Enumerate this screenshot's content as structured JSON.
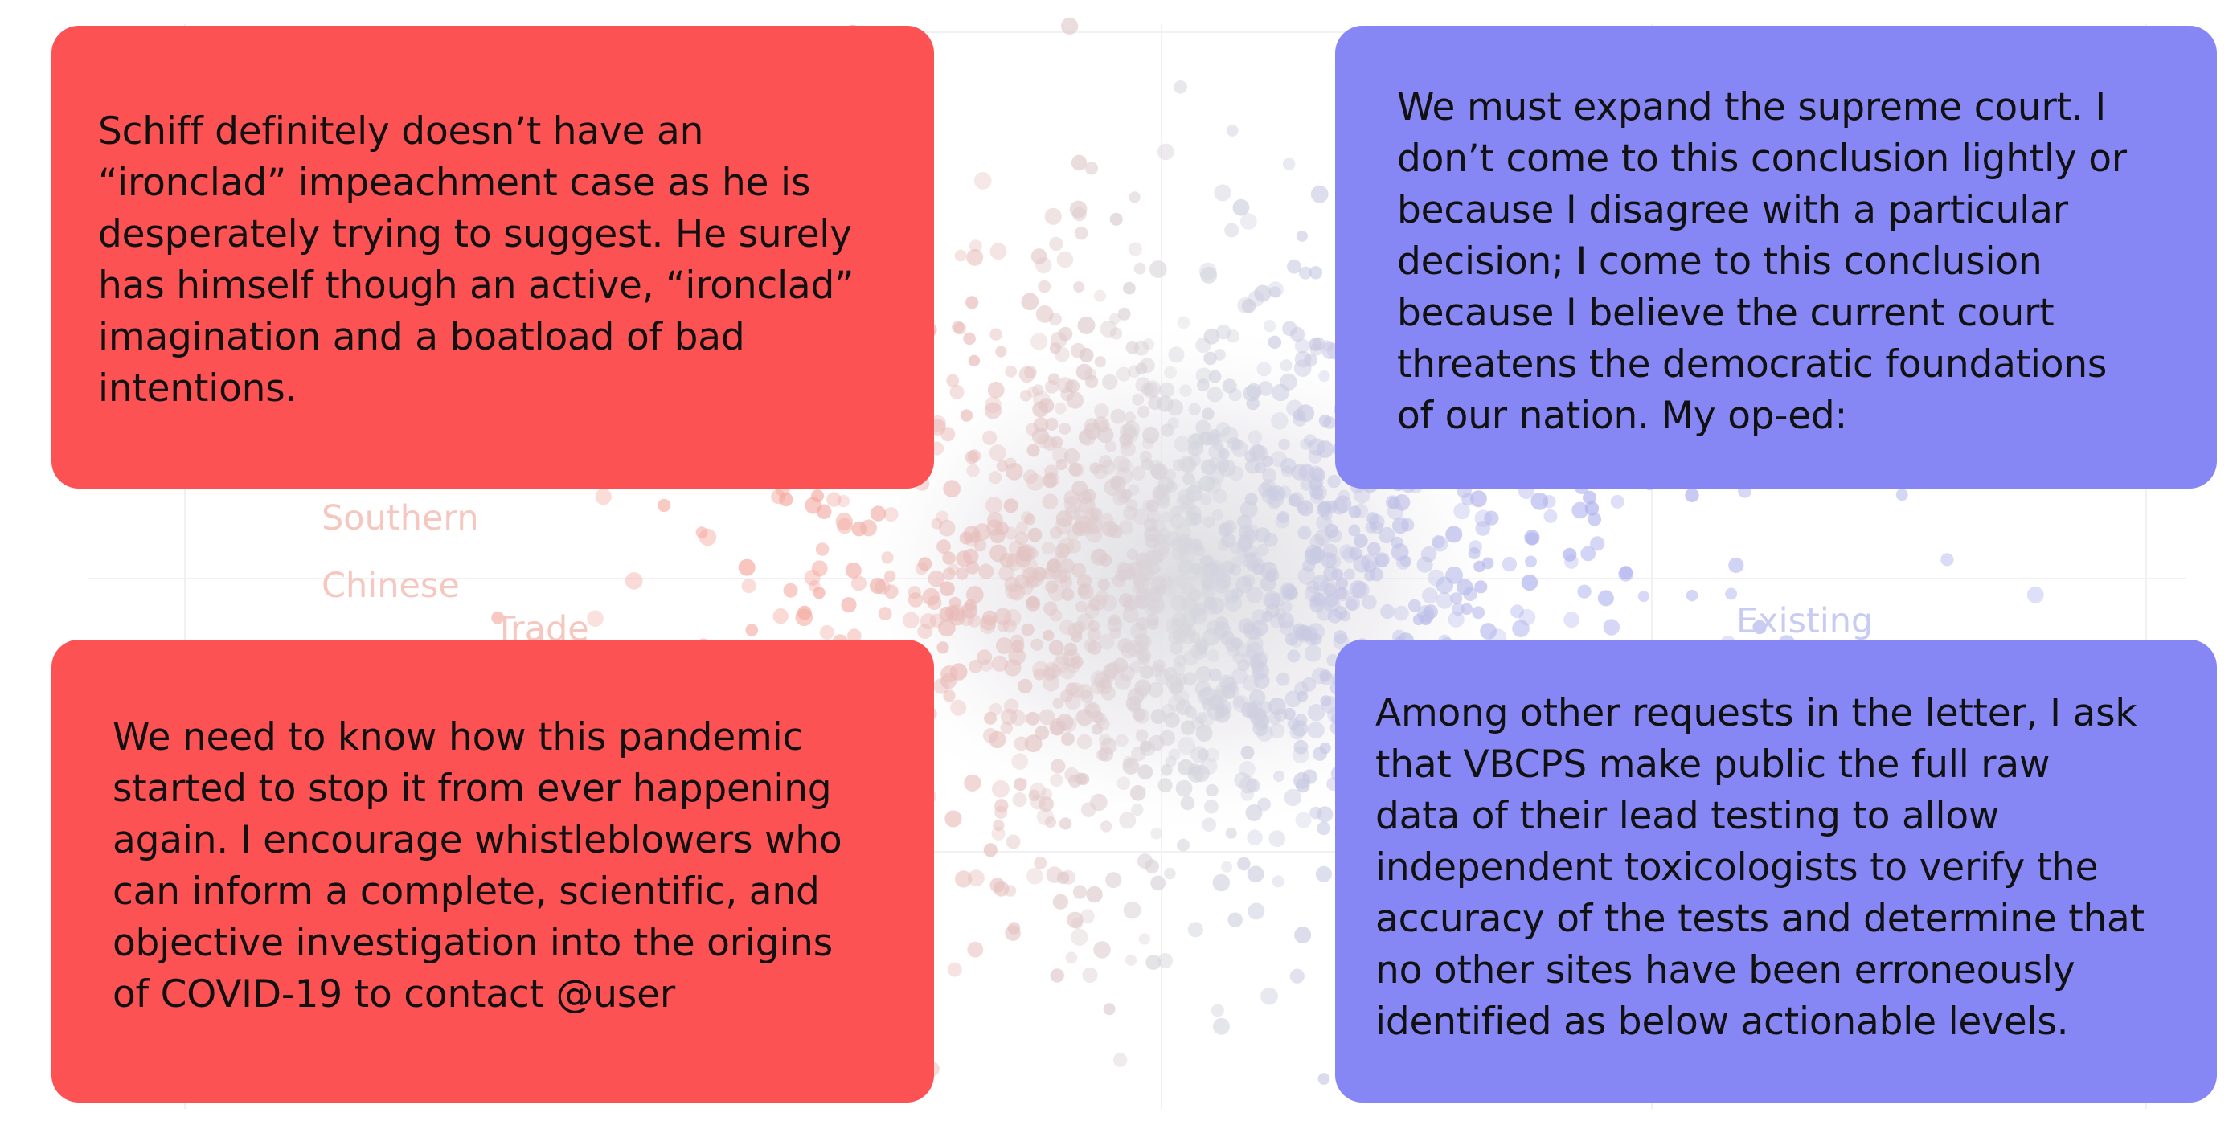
{
  "background_labels": {
    "southern": "Southern",
    "chinese": "Chinese",
    "trade": "Trade",
    "existing": "Existing"
  },
  "colors": {
    "red_card": "#fd5253",
    "blue_card": "#8686f4",
    "dot_red": "#f4a9a0",
    "dot_blue": "#aeb1ee",
    "dot_gray": "#d6d6dc"
  },
  "cards": {
    "top_left": {
      "text": "Schiff definitely doesn’t have an\n“ironclad” impeachment case as he is\ndesperately trying to suggest. He surely\nhas himself though an active, “ironclad”\nimagination and a boatload of bad\nintentions."
    },
    "top_right": {
      "text": "We must expand the supreme court. I\ndon’t come to this conclusion lightly or\nbecause I disagree with a particular\ndecision; I come to this conclusion\nbecause I believe the current court\nthreatens the democratic foundations\nof our nation. My op-ed:"
    },
    "bottom_left": {
      "text": "We need to know how this pandemic\nstarted to stop it from ever happening\nagain. I encourage whistleblowers who\ncan inform a complete, scientific, and\nobjective investigation into the origins\nof COVID-19 to contact @user"
    },
    "bottom_right": {
      "text": "Among other requests in the letter, I ask\nthat VBCPS make public the full raw\ndata of their lead testing to allow\nindependent toxicologists to verify the\naccuracy of the tests and determine that\nno other sites have been erroneously\nidentified as below actionable levels."
    }
  }
}
